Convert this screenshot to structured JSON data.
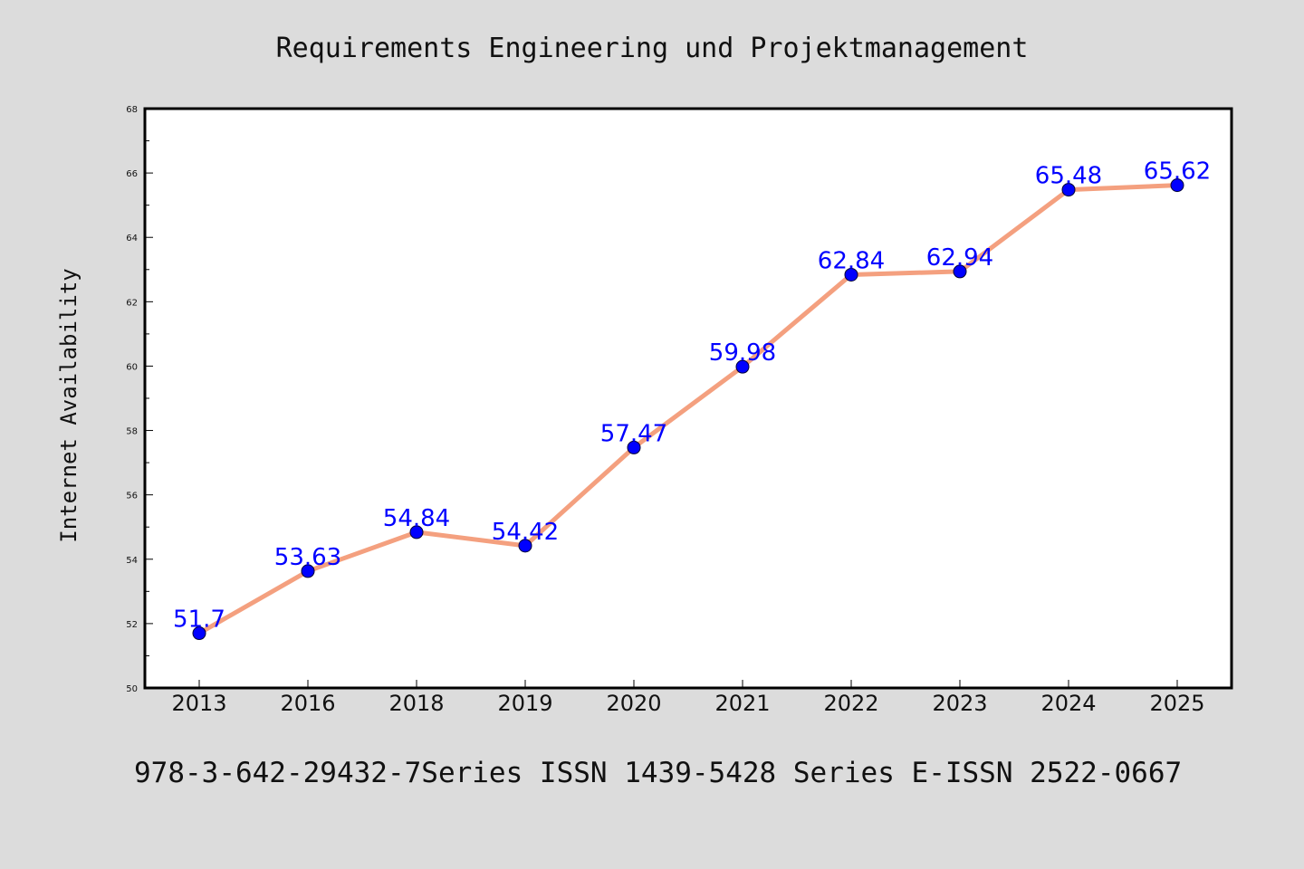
{
  "chart_data": {
    "type": "line",
    "title": "Requirements Engineering und Projektmanagement",
    "ylabel": "Internet Availability",
    "xlabel": "",
    "footer": "978-3-642-29432-7Series ISSN 1439-5428 Series E-ISSN 2522-0667",
    "categories": [
      "2013",
      "2016",
      "2018",
      "2019",
      "2020",
      "2021",
      "2022",
      "2023",
      "2024",
      "2025"
    ],
    "series": [
      {
        "values": [
          51.7,
          53.63,
          54.84,
          54.42,
          57.47,
          59.98,
          62.84,
          62.94,
          65.48,
          65.62
        ],
        "labels": [
          "51.7",
          "53.63",
          "54.84",
          "54.42",
          "57.47",
          "59.98",
          "62.84",
          "62.94",
          "65.48",
          "65.62"
        ]
      }
    ],
    "ylim": [
      50,
      68
    ],
    "yticks": [
      "50",
      "52",
      "54",
      "56",
      "58",
      "60",
      "62",
      "64",
      "66",
      "68"
    ],
    "grid": false,
    "colors": {
      "line": "#f4a07f",
      "marker": "#0000ff",
      "label": "#0000ff",
      "background": "#dcdcdc",
      "plot_background": "#ffffff"
    }
  }
}
